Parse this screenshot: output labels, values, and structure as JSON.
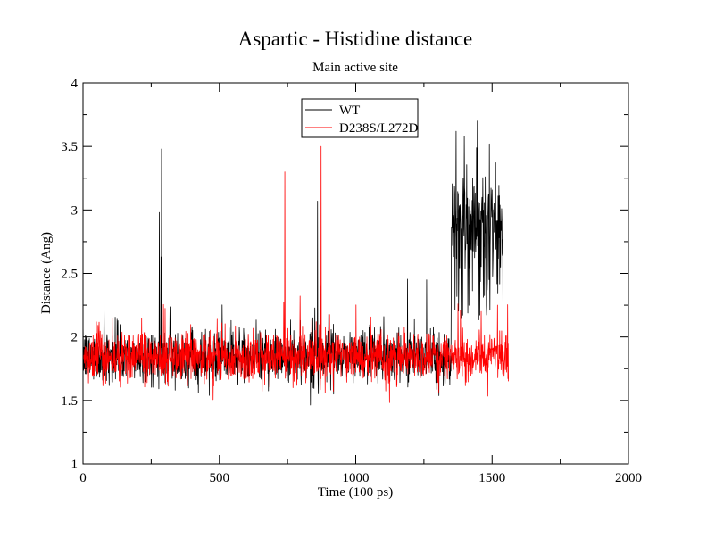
{
  "chart_data": {
    "type": "line",
    "title": "Aspartic - Histidine distance",
    "subtitle": "Main active site",
    "xlabel": "Time (100 ps)",
    "ylabel": "Distance (Ang)",
    "xlim": [
      0,
      2000
    ],
    "ylim": [
      1,
      4
    ],
    "x_ticks": [
      {
        "value": 0,
        "label": "0"
      },
      {
        "value": 500,
        "label": "500"
      },
      {
        "value": 1000,
        "label": "1000"
      },
      {
        "value": 1500,
        "label": "1500"
      },
      {
        "value": 2000,
        "label": "2000"
      }
    ],
    "y_ticks": [
      {
        "value": 1,
        "label": "1"
      },
      {
        "value": 1.5,
        "label": "1.5"
      },
      {
        "value": 2,
        "label": "2"
      },
      {
        "value": 2.5,
        "label": "2.5"
      },
      {
        "value": 3,
        "label": "3"
      },
      {
        "value": 3.5,
        "label": "3.5"
      },
      {
        "value": 4,
        "label": "4"
      }
    ],
    "grid": false,
    "legend_position": "top-center",
    "series": [
      {
        "name": "WT",
        "color": "#000000",
        "x_range": [
          0,
          1540
        ],
        "baseline_mean": 1.85,
        "baseline_noise": 0.1,
        "jump_at": 1350,
        "late_mean": 2.9,
        "late_noise": 0.22,
        "spikes": [
          {
            "x": 280,
            "y": 2.98
          },
          {
            "x": 288,
            "y": 3.48
          },
          {
            "x": 286,
            "y": 2.63
          },
          {
            "x": 860,
            "y": 3.07
          },
          {
            "x": 870,
            "y": 2.4
          },
          {
            "x": 1260,
            "y": 2.45
          },
          {
            "x": 1368,
            "y": 3.62
          },
          {
            "x": 1443,
            "y": 3.49
          },
          {
            "x": 1446,
            "y": 3.7
          },
          {
            "x": 1490,
            "y": 3.52
          }
        ]
      },
      {
        "name": "D238S/L272D",
        "color": "#ff0000",
        "x_range": [
          0,
          1560
        ],
        "baseline_mean": 1.84,
        "baseline_noise": 0.1,
        "spikes": [
          {
            "x": 740,
            "y": 3.3
          },
          {
            "x": 873,
            "y": 3.5
          },
          {
            "x": 855,
            "y": 2.12
          },
          {
            "x": 1375,
            "y": 2.26
          },
          {
            "x": 1460,
            "y": 2.2
          },
          {
            "x": 1520,
            "y": 2.25
          }
        ]
      }
    ]
  }
}
